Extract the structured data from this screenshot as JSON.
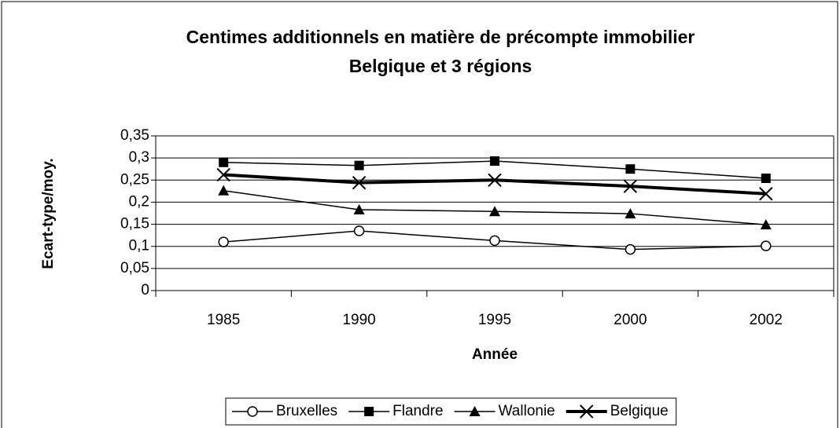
{
  "chart_data": {
    "type": "line",
    "title": "Centimes additionnels en matière de précompte immobilier",
    "subtitle": "Belgique et 3 régions",
    "x_label": "Année",
    "y_label": "Ecart-type/moy.",
    "categories": [
      "1985",
      "1990",
      "1995",
      "2000",
      "2002"
    ],
    "series": [
      {
        "name": "Bruxelles",
        "color": "#000000",
        "marker": "circle",
        "values": [
          0.11,
          0.135,
          0.113,
          0.093,
          0.101
        ]
      },
      {
        "name": "Flandre",
        "color": "#000000",
        "marker": "square",
        "values": [
          0.29,
          0.283,
          0.293,
          0.275,
          0.254
        ]
      },
      {
        "name": "Wallonie",
        "color": "#000000",
        "marker": "triangle",
        "values": [
          0.226,
          0.183,
          0.179,
          0.174,
          0.149
        ]
      },
      {
        "name": "Belgique",
        "color": "#000000",
        "marker": "x",
        "values": [
          0.262,
          0.244,
          0.25,
          0.236,
          0.219
        ]
      }
    ],
    "ylim": [
      0,
      0.35
    ],
    "yticks": [
      0,
      {
        "value": 0.05,
        "label": "0,05"
      },
      {
        "value": 0.1,
        "label": "0,1"
      },
      {
        "value": 0.15,
        "label": "0,15"
      },
      {
        "value": 0.2,
        "label": "0,2"
      },
      {
        "value": 0.25,
        "label": "0,25"
      },
      {
        "value": 0.3,
        "label": "0,3"
      },
      {
        "value": 0.35,
        "label": "0,35"
      }
    ],
    "grid": true,
    "legend": "bottom"
  }
}
